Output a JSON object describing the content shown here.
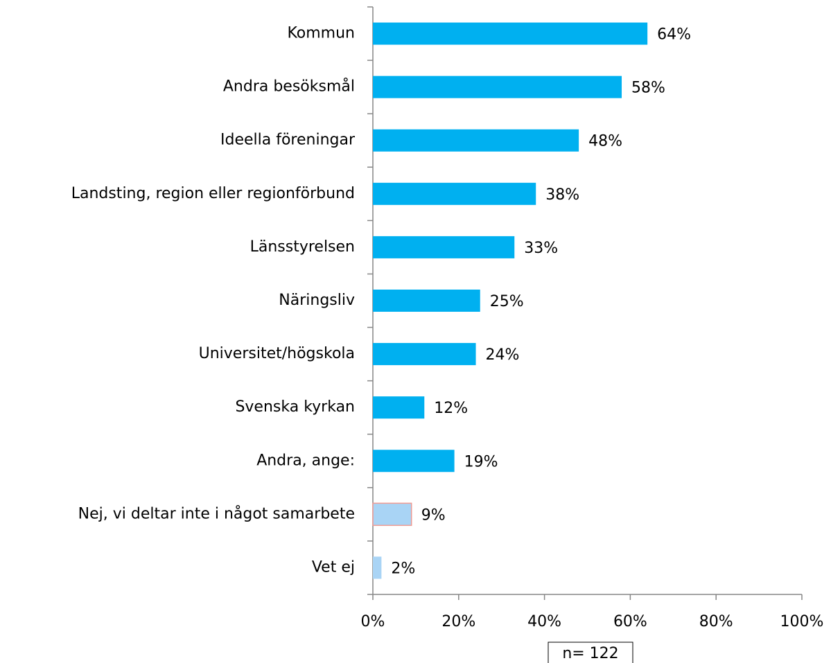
{
  "chart_data": {
    "type": "barh",
    "categories": [
      "Kommun",
      "Andra besöksmål",
      "Ideella föreningar",
      "Landsting, region eller regionförbund",
      "Länsstyrelsen",
      "Näringsliv",
      "Universitet/högskola",
      "Svenska kyrkan",
      "Andra, ange:",
      "Nej, vi deltar inte i något samarbete",
      "Vet ej"
    ],
    "values": [
      64,
      58,
      48,
      38,
      33,
      25,
      24,
      12,
      19,
      9,
      2
    ],
    "value_labels": [
      "64%",
      "58%",
      "48%",
      "38%",
      "33%",
      "25%",
      "24%",
      "12%",
      "19%",
      "9%",
      "2%"
    ],
    "colors": [
      "#00b0f0",
      "#00b0f0",
      "#00b0f0",
      "#00b0f0",
      "#00b0f0",
      "#00b0f0",
      "#00b0f0",
      "#00b0f0",
      "#00b0f0",
      "#a9d4f5",
      "#a9d4f5"
    ],
    "edgecolors": [
      null,
      null,
      null,
      null,
      null,
      null,
      null,
      null,
      null,
      "#f09a92",
      null
    ],
    "xlim": [
      0,
      100
    ],
    "xticks": [
      {
        "value": 0,
        "label": "0%"
      },
      {
        "value": 20,
        "label": "20%"
      },
      {
        "value": 40,
        "label": "40%"
      },
      {
        "value": 60,
        "label": "60%"
      },
      {
        "value": 80,
        "label": "80%"
      },
      {
        "value": 100,
        "label": "100%"
      }
    ],
    "annotation": "n= 122"
  }
}
